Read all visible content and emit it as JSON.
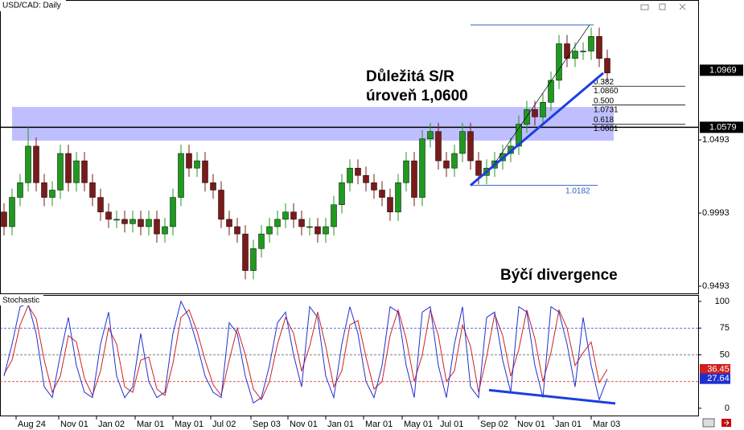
{
  "chart_data": [
    {
      "type": "candlestick",
      "title": "USD/CAD: Daily",
      "xlim": [
        -0.5,
        86.3
      ],
      "ylim": [
        0.9444,
        1.1449
      ],
      "yticks": [
        1.0493,
        0.9993,
        0.9493
      ],
      "up_color": "#1f9a1f",
      "down_color": "#7a1a1a",
      "open": [
        1.0,
        0.99,
        1.01,
        1.02,
        1.045,
        1.02,
        1.01,
        1.015,
        1.04,
        1.02,
        1.035,
        1.02,
        1.01,
        1.0,
        0.995,
        0.995,
        0.992,
        0.995,
        0.99,
        0.995,
        0.985,
        0.99,
        1.01,
        1.04,
        1.03,
        1.035,
        1.02,
        1.015,
        0.995,
        0.99,
        0.985,
        0.96,
        0.975,
        0.985,
        0.99,
        0.995,
        1.0,
        0.995,
        0.99,
        0.99,
        0.985,
        0.99,
        1.005,
        1.02,
        1.03,
        1.025,
        1.02,
        1.015,
        1.01,
        1.0,
        1.02,
        1.035,
        1.01,
        1.05,
        1.055,
        1.035,
        1.03,
        1.04,
        1.055,
        1.035,
        1.025,
        1.03,
        1.035,
        1.04,
        1.045,
        1.06,
        1.07,
        1.065,
        1.075,
        1.09,
        1.115,
        1.105,
        1.11,
        1.11,
        1.12,
        1.105
      ],
      "high": [
        1.006,
        1.016,
        1.026,
        1.058,
        1.051,
        1.026,
        1.021,
        1.046,
        1.046,
        1.041,
        1.041,
        1.026,
        1.016,
        1.006,
        1.001,
        1.001,
        1.001,
        1.001,
        1.001,
        1.001,
        0.996,
        1.016,
        1.046,
        1.046,
        1.041,
        1.041,
        1.026,
        1.021,
        1.001,
        0.996,
        0.991,
        0.981,
        0.991,
        0.996,
        1.001,
        1.006,
        1.006,
        1.001,
        0.996,
        0.996,
        0.996,
        1.011,
        1.026,
        1.036,
        1.036,
        1.031,
        1.026,
        1.021,
        1.016,
        1.026,
        1.041,
        1.041,
        1.056,
        1.061,
        1.061,
        1.041,
        1.046,
        1.061,
        1.061,
        1.041,
        1.036,
        1.041,
        1.046,
        1.051,
        1.066,
        1.076,
        1.076,
        1.081,
        1.096,
        1.121,
        1.121,
        1.116,
        1.116,
        1.126,
        1.126,
        1.111
      ],
      "low": [
        0.984,
        0.984,
        1.004,
        1.014,
        1.014,
        1.004,
        1.004,
        1.009,
        1.014,
        1.014,
        1.014,
        1.004,
        0.994,
        0.989,
        0.989,
        0.986,
        0.986,
        0.984,
        0.984,
        0.979,
        0.979,
        0.984,
        1.004,
        1.024,
        1.024,
        1.014,
        1.009,
        0.989,
        0.984,
        0.979,
        0.954,
        0.954,
        0.969,
        0.979,
        0.984,
        0.989,
        0.989,
        0.984,
        0.984,
        0.979,
        0.979,
        0.984,
        0.999,
        1.014,
        1.019,
        1.014,
        1.009,
        1.004,
        0.994,
        0.994,
        1.014,
        1.004,
        1.004,
        1.044,
        1.029,
        1.024,
        1.024,
        1.034,
        1.029,
        1.019,
        1.019,
        1.024,
        1.029,
        1.034,
        1.039,
        1.054,
        1.059,
        1.059,
        1.069,
        1.084,
        1.099,
        1.099,
        1.104,
        1.104,
        1.099,
        1.089
      ],
      "close": [
        0.99,
        1.01,
        1.02,
        1.045,
        1.02,
        1.01,
        1.015,
        1.04,
        1.02,
        1.035,
        1.02,
        1.01,
        1.0,
        0.995,
        0.995,
        0.992,
        0.995,
        0.99,
        0.995,
        0.985,
        0.99,
        1.01,
        1.04,
        1.03,
        1.035,
        1.02,
        1.015,
        0.995,
        0.99,
        0.985,
        0.96,
        0.975,
        0.985,
        0.99,
        0.995,
        1.0,
        0.995,
        0.99,
        0.99,
        0.985,
        0.99,
        1.005,
        1.02,
        1.03,
        1.025,
        1.02,
        1.015,
        1.01,
        1.0,
        1.02,
        1.035,
        1.01,
        1.05,
        1.055,
        1.035,
        1.03,
        1.04,
        1.055,
        1.035,
        1.025,
        1.03,
        1.035,
        1.04,
        1.045,
        1.06,
        1.07,
        1.065,
        1.075,
        1.09,
        1.115,
        1.105,
        1.11,
        1.11,
        1.12,
        1.105,
        1.095
      ],
      "price_markers": [
        1.0969,
        1.0579
      ],
      "sr_zone": {
        "x": [
          1,
          75.8
        ],
        "y": [
          1.0488,
          1.0718
        ],
        "color": "#b4b4ff"
      },
      "trendline": {
        "x": [
          58,
          74.5
        ],
        "y": [
          1.0182,
          1.095
        ],
        "color": "#1a3fe0"
      },
      "fib": {
        "x": [
          58,
          72.8
        ],
        "high": 1.1279,
        "low": {
          "value": 1.0182,
          "label": "1.0182"
        },
        "color": "#3060c0",
        "levels": [
          {
            "ratio": {
              "value": 0.382,
              "label": "0.382"
            },
            "price": {
              "value": 1.086,
              "label": "1.0860"
            }
          },
          {
            "ratio": {
              "value": 0.5,
              "label": "0.500"
            },
            "price": {
              "value": 1.0731,
              "label": "1.0731"
            }
          },
          {
            "ratio": {
              "value": 0.618,
              "label": "0.618"
            },
            "price": {
              "value": 1.0601,
              "label": "1.0601"
            }
          }
        ]
      },
      "annotations": [
        "Důležitá S/R",
        "úroveň 1,0600",
        "Býčí divergence"
      ]
    },
    {
      "type": "line",
      "title": "Stochastic",
      "xlim": [
        -0.5,
        86.3
      ],
      "ylim": [
        -6.8,
        106
      ],
      "yticks": [
        0,
        50,
        75,
        100
      ],
      "levels": [
        {
          "value": 75,
          "color": "#3040c0"
        },
        {
          "value": 50,
          "color": "#606060"
        },
        {
          "value": 25,
          "color": "#d02020"
        }
      ],
      "xticks": [
        {
          "value": 1.5,
          "label": "Aug 24"
        },
        {
          "value": 6.8,
          "label": "Nov 01"
        },
        {
          "value": 11.5,
          "label": "Jan 02"
        },
        {
          "value": 16.3,
          "label": "Mar 01"
        },
        {
          "value": 21,
          "label": "May 01"
        },
        {
          "value": 25.7,
          "label": "Jul 02"
        },
        {
          "value": 30.7,
          "label": "Sep 03"
        },
        {
          "value": 35.3,
          "label": "Nov 01"
        },
        {
          "value": 40,
          "label": "Jan 01"
        },
        {
          "value": 44.7,
          "label": "Mar 01"
        },
        {
          "value": 49.5,
          "label": "May 01"
        },
        {
          "value": 54,
          "label": "Jul 01"
        },
        {
          "value": 59,
          "label": "Sep 02"
        },
        {
          "value": 63.6,
          "label": "Nov 01"
        },
        {
          "value": 68.3,
          "label": "Jan 01"
        },
        {
          "value": 73,
          "label": "Mar 03"
        }
      ],
      "series": [
        {
          "color": "#d02020",
          "values": [
            32,
            45,
            78,
            96,
            84,
            45,
            15,
            30,
            68,
            62,
            28,
            12,
            35,
            75,
            60,
            20,
            15,
            45,
            48,
            18,
            12,
            42,
            85,
            92,
            72,
            45,
            22,
            12,
            45,
            75,
            50,
            18,
            8,
            25,
            60,
            85,
            70,
            35,
            58,
            90,
            58,
            20,
            35,
            78,
            82,
            48,
            18,
            25,
            68,
            92,
            65,
            25,
            50,
            92,
            68,
            25,
            35,
            78,
            58,
            15,
            48,
            88,
            68,
            30,
            55,
            92,
            65,
            25,
            52,
            92,
            75,
            40,
            52,
            62,
            24,
            36.45
          ]
        },
        {
          "color": "#2030d0",
          "values": [
            30,
            60,
            95,
            98,
            70,
            20,
            10,
            50,
            85,
            40,
            15,
            10,
            60,
            90,
            30,
            10,
            20,
            70,
            25,
            10,
            15,
            70,
            100,
            85,
            60,
            30,
            15,
            10,
            80,
            70,
            30,
            5,
            10,
            40,
            80,
            90,
            50,
            20,
            95,
            85,
            30,
            10,
            60,
            95,
            70,
            25,
            10,
            40,
            95,
            90,
            40,
            10,
            90,
            95,
            40,
            10,
            60,
            95,
            20,
            10,
            85,
            90,
            45,
            15,
            95,
            90,
            40,
            10,
            95,
            90,
            60,
            20,
            85,
            40,
            8,
            27.64
          ]
        }
      ],
      "divergence": {
        "x": [
          60.3,
          76
        ],
        "y": [
          17,
          4.5
        ],
        "color": "#1a3fe0"
      }
    }
  ]
}
